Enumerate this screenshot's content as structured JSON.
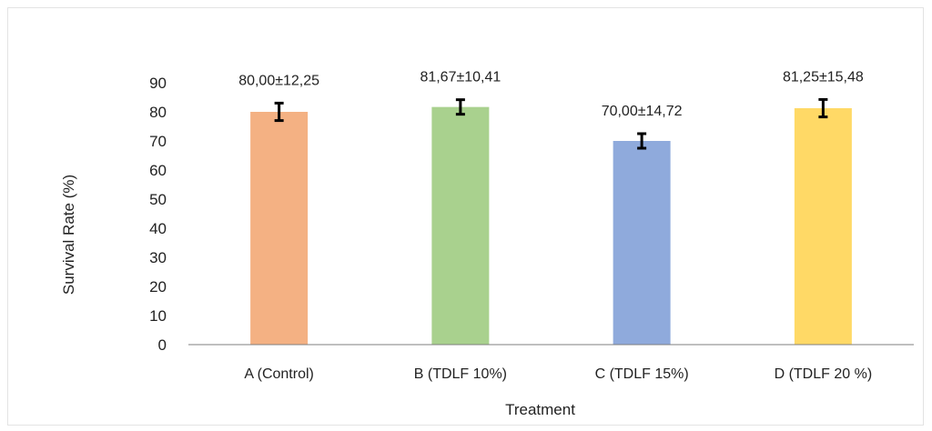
{
  "chart_data": {
    "type": "bar",
    "categories": [
      "A (Control)",
      "B (TDLF 10%)",
      "C (TDLF 15%)",
      "D (TDLF 20 %)"
    ],
    "values": [
      80.0,
      81.67,
      70.0,
      81.25
    ],
    "data_labels": [
      "80,00±12,25",
      "81,67±10,41",
      "70,00±14,72",
      "81,25±15,48"
    ],
    "error_bar_extent": [
      3,
      2.5,
      2.5,
      3
    ],
    "colors": [
      "#f4b183",
      "#a9d18e",
      "#8faadc",
      "#ffd966"
    ],
    "title": "",
    "xlabel": "Treatment",
    "ylabel": "Survival  Rate (%)",
    "ylim": [
      0,
      90
    ],
    "yticks": [
      "0",
      "10",
      "20",
      "30",
      "40",
      "50",
      "60",
      "70",
      "80",
      "90"
    ],
    "grid": false,
    "legend": "none"
  }
}
